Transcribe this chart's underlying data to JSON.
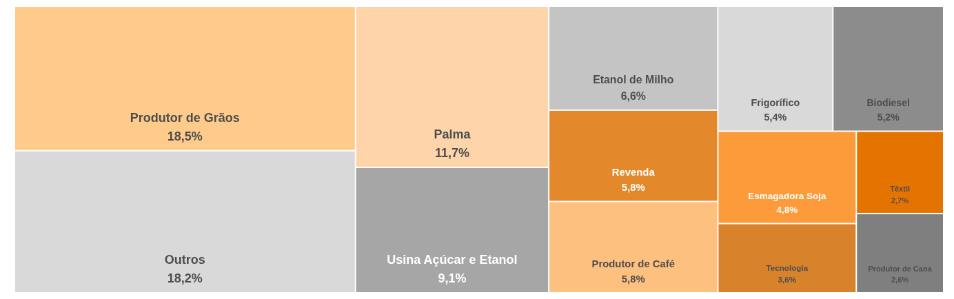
{
  "chart_data": {
    "type": "other",
    "categories": [
      "Produtor de Grãos",
      "Outros",
      "Palma",
      "Usina Açúcar e Etanol",
      "Etanol de Milho",
      "Revenda",
      "Produtor de Café",
      "Frigorífico",
      "Biodiesel",
      "Esmagadora Soja",
      "Tecnologia",
      "Têxtil",
      "Produtor de Cana"
    ],
    "values": [
      18.5,
      18.2,
      11.7,
      9.1,
      6.6,
      5.8,
      5.8,
      5.4,
      5.2,
      4.8,
      3.6,
      2.7,
      2.6
    ],
    "value_labels": [
      "18,5%",
      "18,2%",
      "11,7%",
      "9,1%",
      "6,6%",
      "5,8%",
      "5,8%",
      "5,4%",
      "5,2%",
      "4,8%",
      "3,6%",
      "2,7%",
      "2,6%"
    ],
    "colors": [
      "#fecb8b",
      "#d9d9d9",
      "#fed5aa",
      "#a6a6a6",
      "#c4c4c4",
      "#e3882b",
      "#fec07f",
      "#d9d9d9",
      "#8c8c8c",
      "#fd9a3a",
      "#d9822c",
      "#e57300",
      "#7f7f7f"
    ]
  }
}
